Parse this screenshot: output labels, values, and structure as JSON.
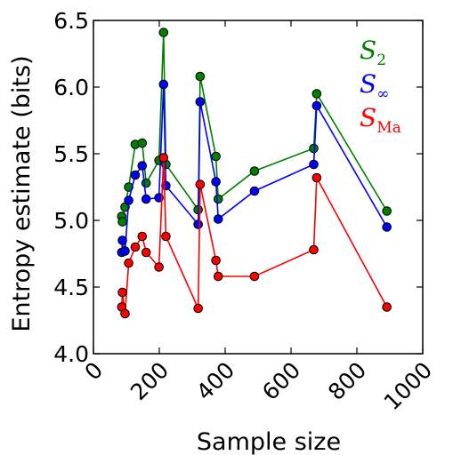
{
  "chart_data": {
    "type": "scatter",
    "title": "",
    "xlabel": "Sample size",
    "ylabel": "Entropy estimate (bits)",
    "xlim": [
      0,
      1000
    ],
    "ylim": [
      4.0,
      6.5
    ],
    "xticks": [
      "0",
      "200",
      "400",
      "600",
      "800",
      "1000"
    ],
    "yticks": [
      "4.0",
      "4.5",
      "5.0",
      "5.5",
      "6.0",
      "6.5"
    ],
    "grid": false,
    "legend_position": "top-right",
    "series": [
      {
        "name": "S",
        "name_sub": "2",
        "color": "#008000",
        "x": [
          86,
          88,
          96,
          107,
          127,
          148,
          160,
          199,
          213,
          220,
          318,
          324,
          372,
          379,
          489,
          669,
          678,
          891
        ],
        "y": [
          5.03,
          4.99,
          5.1,
          5.25,
          5.57,
          5.58,
          5.28,
          5.45,
          6.41,
          5.42,
          5.08,
          6.08,
          5.48,
          5.16,
          5.37,
          5.54,
          5.95,
          5.07
        ]
      },
      {
        "name": "S",
        "name_sub": "∞",
        "color": "#0000ff",
        "x": [
          86,
          88,
          96,
          107,
          127,
          148,
          160,
          199,
          213,
          220,
          318,
          324,
          372,
          379,
          489,
          669,
          678,
          891
        ],
        "y": [
          4.76,
          4.85,
          4.77,
          5.15,
          5.34,
          5.41,
          5.16,
          5.17,
          6.02,
          5.26,
          4.97,
          5.89,
          5.29,
          5.01,
          5.22,
          5.42,
          5.86,
          4.95
        ]
      },
      {
        "name": "S",
        "name_sub": "Ma",
        "color": "#ff0000",
        "x": [
          86,
          88,
          96,
          107,
          127,
          148,
          160,
          199,
          213,
          220,
          318,
          324,
          372,
          379,
          489,
          669,
          678,
          891
        ],
        "y": [
          4.35,
          4.46,
          4.3,
          4.68,
          4.8,
          4.88,
          4.76,
          4.65,
          5.47,
          4.88,
          4.34,
          5.27,
          4.7,
          4.58,
          4.58,
          4.78,
          5.32,
          4.35
        ]
      }
    ]
  }
}
